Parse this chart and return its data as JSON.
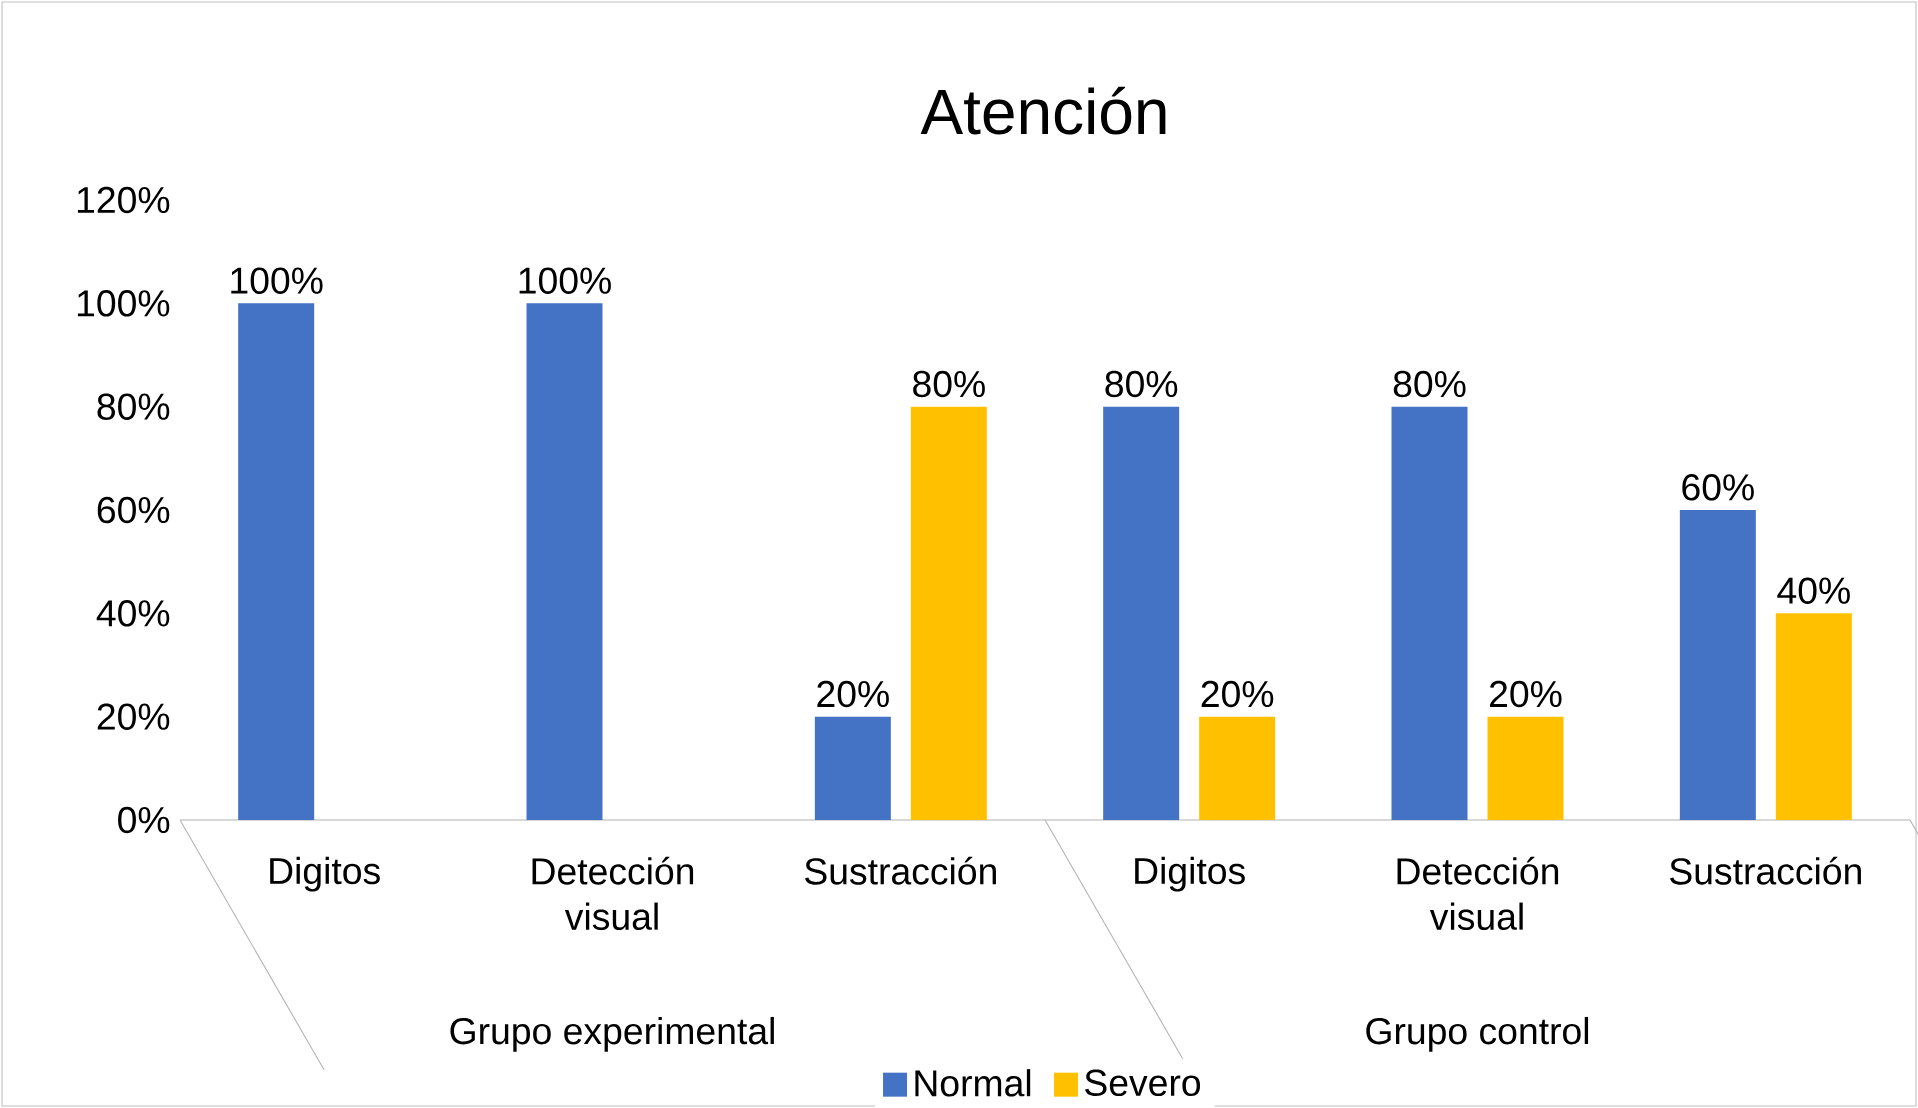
{
  "chart_data": {
    "type": "bar",
    "title": "Atención",
    "categories": [
      "Digitos",
      "Detección visual",
      "Sustracción",
      "Digitos",
      "Detección visual",
      "Sustracción"
    ],
    "series": [
      {
        "name": "Normal",
        "color": "#4472c4",
        "values": [
          100,
          100,
          20,
          80,
          80,
          60
        ],
        "value_labels": [
          "100%",
          "100%",
          "20%",
          "80%",
          "80%",
          "60%"
        ]
      },
      {
        "name": "Severo",
        "color": "#ffc000",
        "values": [
          null,
          null,
          80,
          20,
          20,
          40
        ],
        "value_labels": [
          null,
          null,
          "80%",
          "20%",
          "20%",
          "40%"
        ]
      }
    ],
    "ylim": [
      0,
      120
    ],
    "yticks": [
      {
        "value": 0,
        "label": "0%"
      },
      {
        "value": 20,
        "label": "20%"
      },
      {
        "value": 40,
        "label": "40%"
      },
      {
        "value": 60,
        "label": "60%"
      },
      {
        "value": 80,
        "label": "80%"
      },
      {
        "value": 100,
        "label": "100%"
      },
      {
        "value": 120,
        "label": "120%"
      }
    ],
    "annotations": [
      "Grupo experimental",
      "Grupo control"
    ],
    "grid": false,
    "legend": "bottom"
  }
}
